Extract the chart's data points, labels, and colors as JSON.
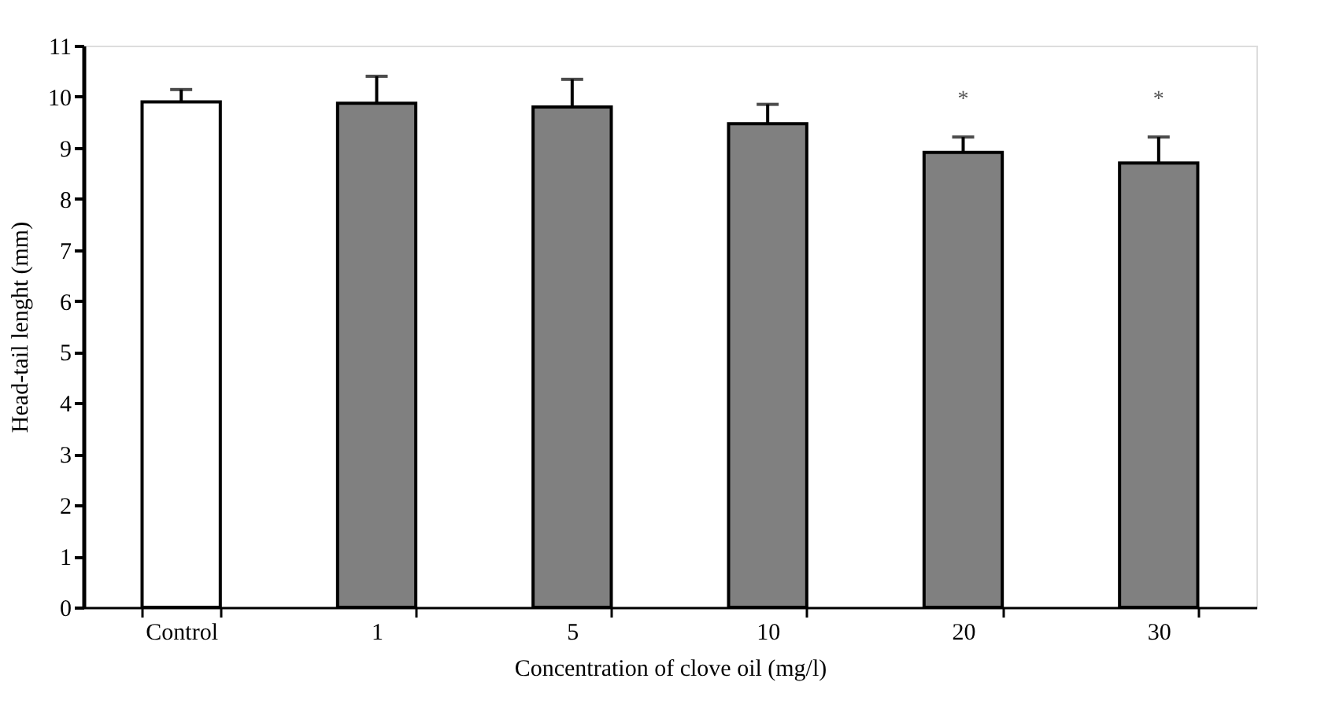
{
  "chart_data": {
    "type": "bar",
    "xlabel": "Concentration of clove oil (mg/l)",
    "ylabel": "Head-tail lenght (mm)",
    "categories": [
      "Control",
      "1",
      "5",
      "10",
      "20",
      "30"
    ],
    "values": [
      9.9,
      9.87,
      9.8,
      9.47,
      8.91,
      8.7
    ],
    "colors": [
      "#ffffff",
      "#808080",
      "#808080",
      "#808080",
      "#808080",
      "#808080"
    ],
    "errors": [
      [
        9.9,
        10.14
      ],
      [
        9.87,
        10.4
      ],
      [
        9.8,
        10.34
      ],
      [
        9.47,
        9.85
      ],
      [
        8.91,
        9.21
      ],
      [
        8.7,
        9.21
      ]
    ],
    "ylim": [
      0,
      11
    ],
    "yticks": [
      0,
      1,
      2,
      3,
      4,
      5,
      6,
      7,
      8,
      9,
      10,
      11
    ],
    "annotations": [
      {
        "text": "*",
        "x": "20",
        "y": 9.21
      },
      {
        "text": "*",
        "x": "30",
        "y": 9.21
      }
    ],
    "grid": false
  }
}
